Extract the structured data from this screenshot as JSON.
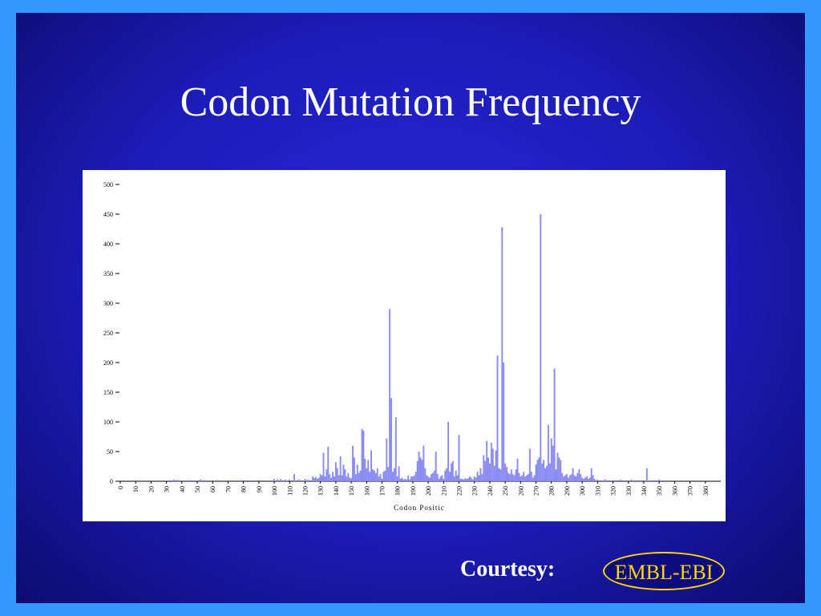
{
  "chart_data": {
    "type": "bar",
    "title": "Codon Mutation Frequency",
    "xlabel": "Codon Positic",
    "color": "#8a8af4",
    "xlim": [
      0,
      390
    ],
    "xticks": [
      0,
      10,
      20,
      30,
      40,
      50,
      60,
      70,
      80,
      90,
      100,
      110,
      120,
      130,
      140,
      150,
      160,
      170,
      180,
      190,
      200,
      210,
      220,
      230,
      240,
      250,
      260,
      270,
      280,
      290,
      300,
      310,
      320,
      330,
      340,
      350,
      360,
      370,
      380
    ],
    "ylim": [
      0,
      500
    ],
    "yticks": [
      0,
      50,
      100,
      150,
      200,
      250,
      300,
      350,
      400,
      450,
      500
    ],
    "x": [
      10,
      35,
      37,
      45,
      52,
      55,
      63,
      72,
      78,
      83,
      91,
      100,
      102,
      104,
      107,
      110,
      113,
      116,
      120,
      122,
      125,
      126,
      127,
      128,
      129,
      130,
      131,
      132,
      133,
      134,
      135,
      136,
      137,
      138,
      139,
      140,
      141,
      142,
      143,
      144,
      145,
      146,
      147,
      148,
      149,
      150,
      151,
      152,
      153,
      154,
      155,
      156,
      157,
      158,
      159,
      160,
      161,
      162,
      163,
      164,
      165,
      166,
      167,
      168,
      169,
      170,
      171,
      172,
      173,
      174,
      175,
      176,
      177,
      178,
      179,
      180,
      181,
      182,
      183,
      184,
      185,
      186,
      187,
      188,
      189,
      190,
      191,
      192,
      193,
      194,
      195,
      196,
      197,
      198,
      199,
      200,
      201,
      202,
      203,
      204,
      205,
      206,
      207,
      208,
      209,
      210,
      211,
      212,
      213,
      214,
      215,
      216,
      217,
      218,
      219,
      220,
      221,
      222,
      223,
      224,
      225,
      226,
      227,
      228,
      229,
      230,
      231,
      232,
      233,
      234,
      235,
      236,
      237,
      238,
      239,
      240,
      241,
      242,
      243,
      244,
      245,
      246,
      247,
      248,
      249,
      250,
      251,
      252,
      253,
      254,
      255,
      256,
      257,
      258,
      259,
      260,
      261,
      262,
      263,
      264,
      265,
      266,
      267,
      268,
      269,
      270,
      271,
      272,
      273,
      274,
      275,
      276,
      277,
      278,
      279,
      280,
      281,
      282,
      283,
      284,
      285,
      286,
      287,
      288,
      289,
      290,
      291,
      292,
      293,
      294,
      295,
      296,
      297,
      298,
      299,
      300,
      301,
      302,
      303,
      304,
      305,
      306,
      307,
      308,
      310,
      315,
      320,
      325,
      332,
      337,
      342,
      346,
      350
    ],
    "values": [
      2,
      3,
      2,
      2,
      3,
      2,
      2,
      2,
      2,
      2,
      2,
      4,
      3,
      4,
      3,
      3,
      12,
      3,
      4,
      3,
      8,
      5,
      7,
      4,
      6,
      12,
      10,
      48,
      8,
      20,
      58,
      12,
      6,
      16,
      8,
      32,
      22,
      10,
      42,
      10,
      28,
      20,
      8,
      14,
      6,
      5,
      60,
      40,
      12,
      28,
      14,
      18,
      88,
      85,
      38,
      22,
      36,
      16,
      52,
      20,
      18,
      14,
      22,
      8,
      12,
      4,
      16,
      18,
      72,
      24,
      290,
      140,
      16,
      22,
      108,
      8,
      25,
      4,
      6,
      3,
      4,
      3,
      10,
      3,
      8,
      8,
      10,
      16,
      34,
      50,
      40,
      36,
      60,
      22,
      10,
      8,
      6,
      12,
      14,
      18,
      50,
      12,
      4,
      8,
      10,
      4,
      18,
      22,
      100,
      16,
      30,
      34,
      8,
      18,
      10,
      78,
      4,
      4,
      3,
      5,
      4,
      5,
      8,
      6,
      3,
      8,
      6,
      16,
      10,
      22,
      12,
      44,
      34,
      68,
      40,
      30,
      65,
      55,
      26,
      52,
      212,
      22,
      20,
      428,
      200,
      30,
      24,
      14,
      12,
      20,
      12,
      10,
      20,
      38,
      14,
      8,
      10,
      16,
      8,
      10,
      12,
      55,
      16,
      6,
      10,
      28,
      36,
      40,
      450,
      30,
      36,
      22,
      26,
      95,
      30,
      72,
      60,
      190,
      20,
      48,
      40,
      36,
      14,
      8,
      10,
      12,
      6,
      10,
      12,
      22,
      10,
      8,
      14,
      20,
      12,
      6,
      4,
      6,
      8,
      4,
      6,
      22,
      10,
      4,
      3,
      3,
      2,
      3,
      3,
      2,
      22,
      2,
      3
    ]
  },
  "footer": {
    "courtesy": "Courtesy:",
    "logo": "EMBL-EBI"
  }
}
